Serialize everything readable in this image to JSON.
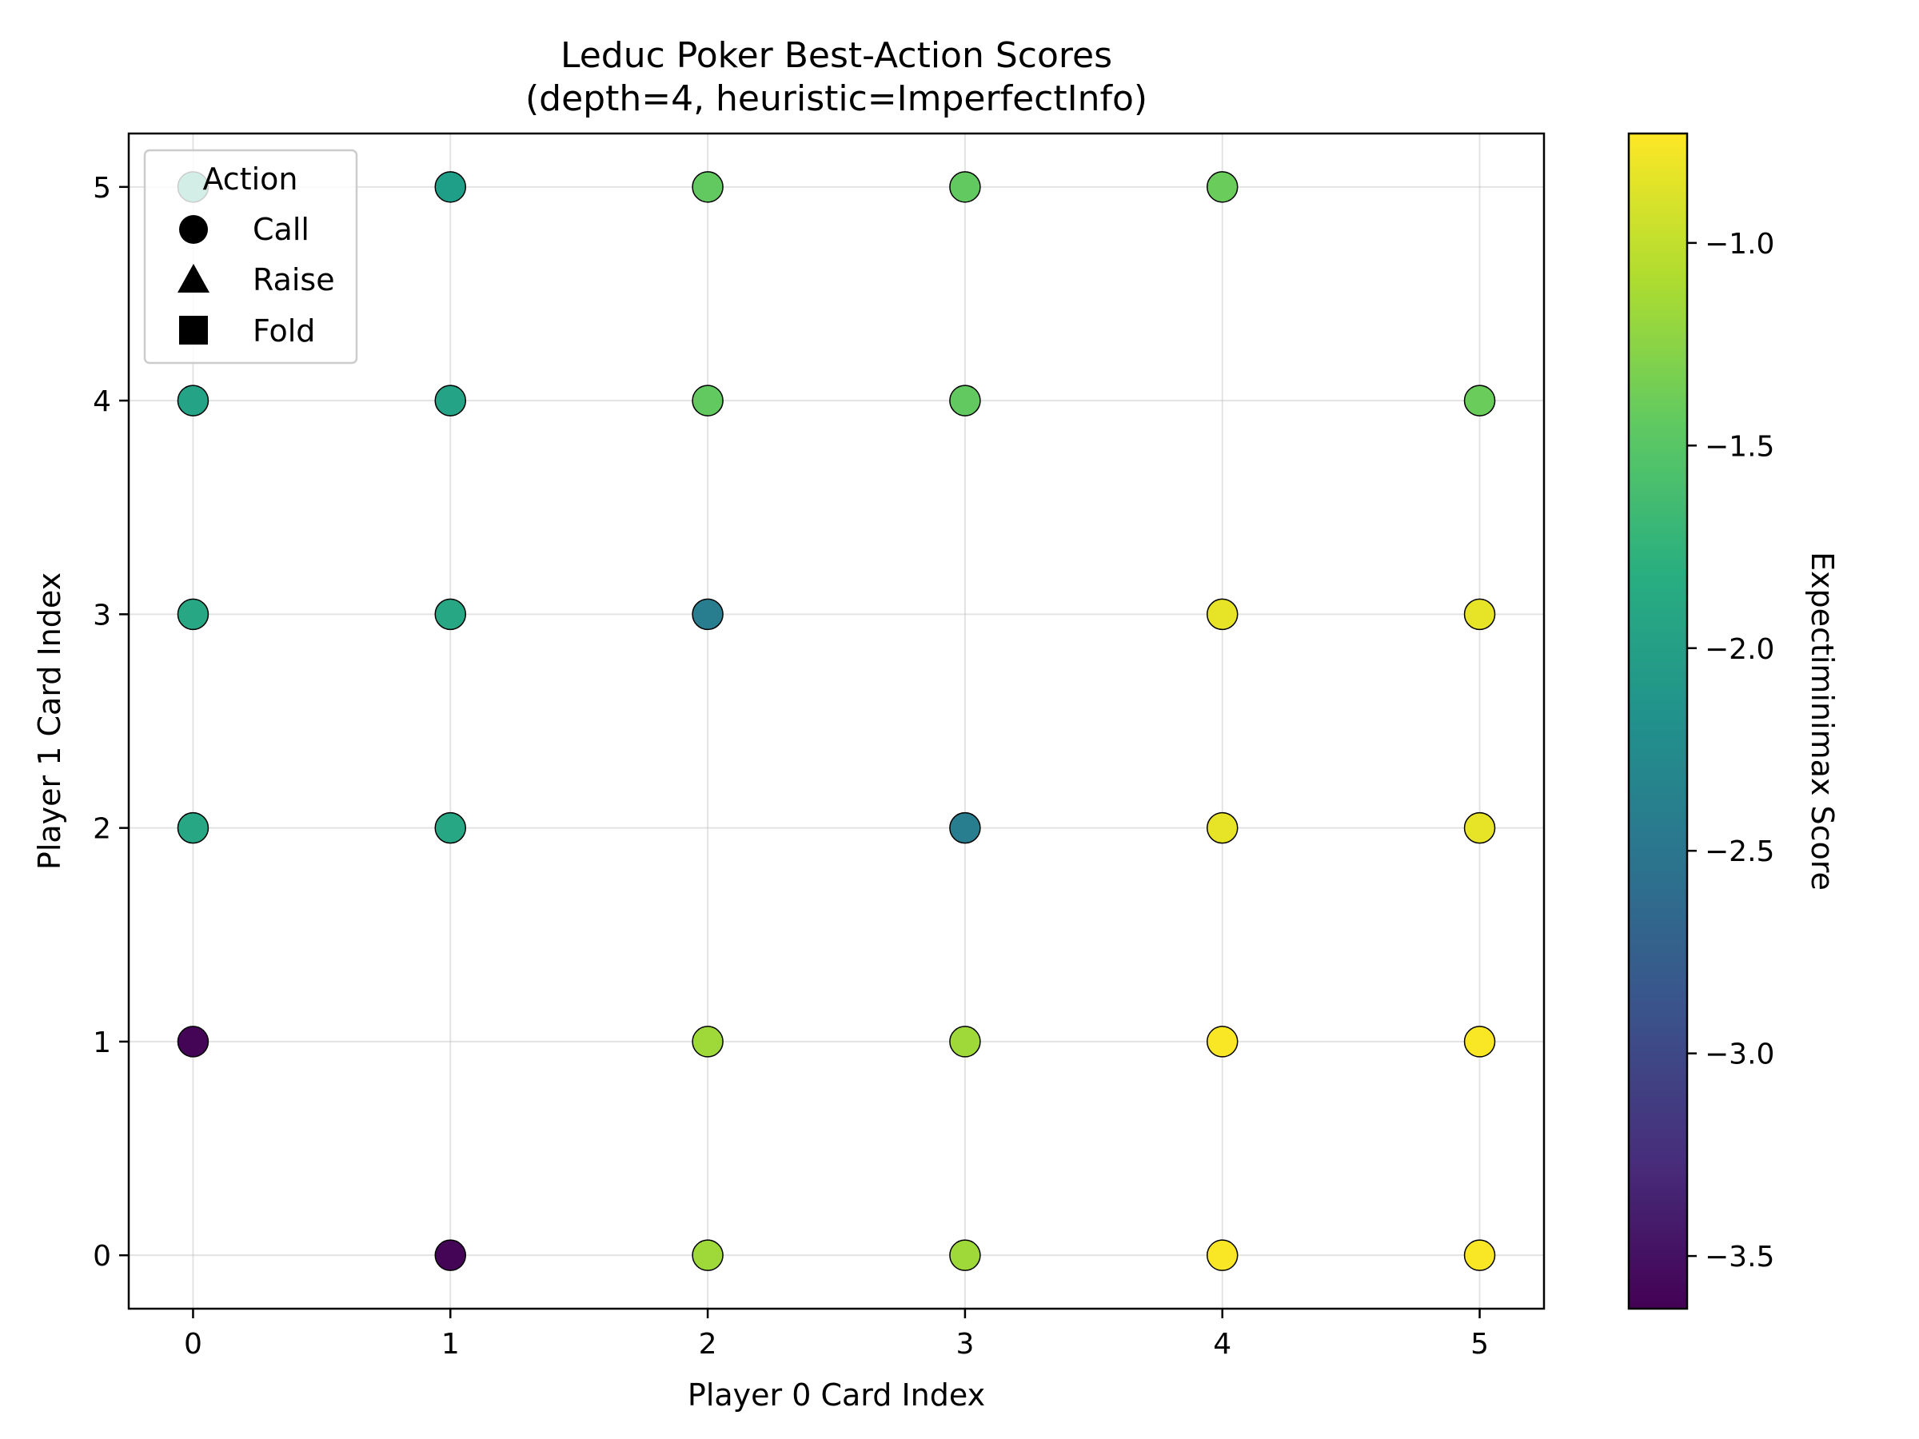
{
  "chart_data": {
    "type": "scatter",
    "title": "Leduc Poker Best-Action Scores",
    "subtitle": "(depth=4, heuristic=ImperfectInfo)",
    "xlabel": "Player 0 Card Index",
    "ylabel": "Player 1 Card Index",
    "xlim": [
      -0.25,
      5.25
    ],
    "ylim": [
      -0.25,
      5.25
    ],
    "xticks": [
      "0",
      "1",
      "2",
      "3",
      "4",
      "5"
    ],
    "yticks": [
      "0",
      "1",
      "2",
      "3",
      "4",
      "5"
    ],
    "grid": true,
    "legend": {
      "title": "Action",
      "placement": "upper-left",
      "entries": [
        {
          "label": "Call",
          "marker": "circle"
        },
        {
          "label": "Raise",
          "marker": "triangle"
        },
        {
          "label": "Fold",
          "marker": "square"
        }
      ]
    },
    "colorbar": {
      "label": "Expectiminimax Score",
      "colormap": "viridis",
      "range": [
        -3.63,
        -0.73
      ],
      "ticks": [
        "−3.5",
        "−3.0",
        "−2.5",
        "−2.0",
        "−1.5",
        "−1.0"
      ],
      "tick_values": [
        -3.5,
        -3.0,
        -2.5,
        -2.0,
        -1.5,
        -1.0
      ]
    },
    "points": [
      {
        "x": 0,
        "y": 5,
        "action": "Call",
        "score": -1.95
      },
      {
        "x": 1,
        "y": 5,
        "action": "Call",
        "score": -2.0
      },
      {
        "x": 2,
        "y": 5,
        "action": "Call",
        "score": -1.45
      },
      {
        "x": 3,
        "y": 5,
        "action": "Call",
        "score": -1.45
      },
      {
        "x": 4,
        "y": 5,
        "action": "Call",
        "score": -1.4
      },
      {
        "x": 0,
        "y": 4,
        "action": "Call",
        "score": -1.95
      },
      {
        "x": 1,
        "y": 4,
        "action": "Call",
        "score": -1.95
      },
      {
        "x": 2,
        "y": 4,
        "action": "Call",
        "score": -1.45
      },
      {
        "x": 3,
        "y": 4,
        "action": "Call",
        "score": -1.45
      },
      {
        "x": 5,
        "y": 4,
        "action": "Call",
        "score": -1.4
      },
      {
        "x": 0,
        "y": 3,
        "action": "Call",
        "score": -1.9
      },
      {
        "x": 1,
        "y": 3,
        "action": "Call",
        "score": -1.9
      },
      {
        "x": 2,
        "y": 3,
        "action": "Call",
        "score": -2.4
      },
      {
        "x": 4,
        "y": 3,
        "action": "Call",
        "score": -0.83
      },
      {
        "x": 5,
        "y": 3,
        "action": "Call",
        "score": -0.83
      },
      {
        "x": 0,
        "y": 2,
        "action": "Call",
        "score": -1.9
      },
      {
        "x": 1,
        "y": 2,
        "action": "Call",
        "score": -1.9
      },
      {
        "x": 3,
        "y": 2,
        "action": "Call",
        "score": -2.4
      },
      {
        "x": 4,
        "y": 2,
        "action": "Call",
        "score": -0.83
      },
      {
        "x": 5,
        "y": 2,
        "action": "Call",
        "score": -0.83
      },
      {
        "x": 0,
        "y": 1,
        "action": "Call",
        "score": -3.6
      },
      {
        "x": 2,
        "y": 1,
        "action": "Call",
        "score": -1.15
      },
      {
        "x": 3,
        "y": 1,
        "action": "Call",
        "score": -1.15
      },
      {
        "x": 4,
        "y": 1,
        "action": "Call",
        "score": -0.75
      },
      {
        "x": 5,
        "y": 1,
        "action": "Call",
        "score": -0.75
      },
      {
        "x": 1,
        "y": 0,
        "action": "Call",
        "score": -3.6
      },
      {
        "x": 2,
        "y": 0,
        "action": "Call",
        "score": -1.15
      },
      {
        "x": 3,
        "y": 0,
        "action": "Call",
        "score": -1.15
      },
      {
        "x": 4,
        "y": 0,
        "action": "Call",
        "score": -0.75
      },
      {
        "x": 5,
        "y": 0,
        "action": "Call",
        "score": -0.75
      }
    ]
  }
}
